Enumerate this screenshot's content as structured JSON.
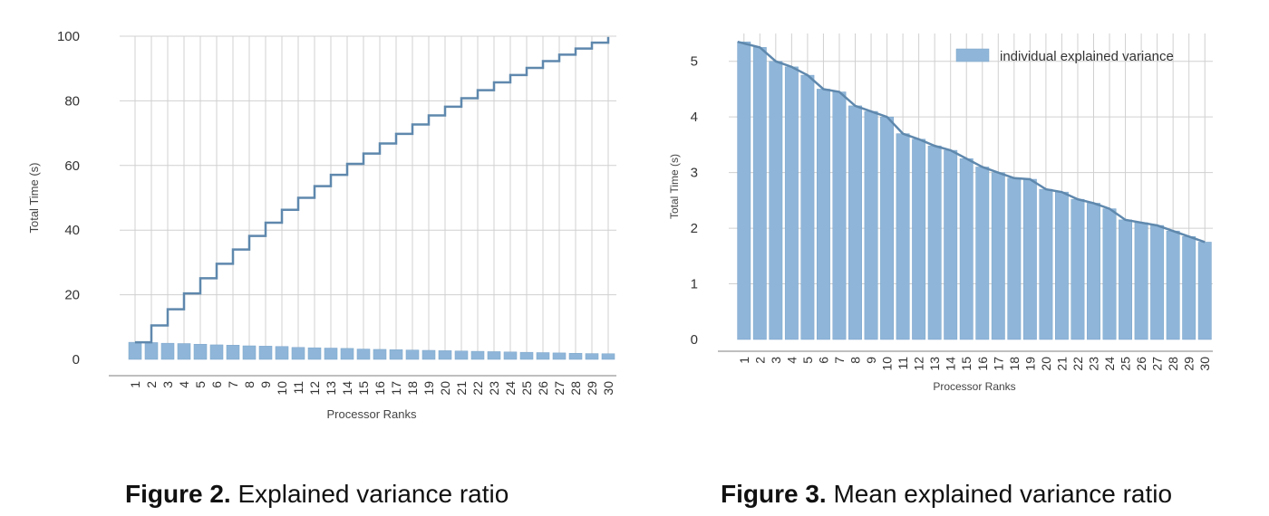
{
  "captions": [
    {
      "label": "Figure 2.",
      "text": "Explained variance ratio"
    },
    {
      "label": "Figure 3.",
      "text": "Mean explained variance ratio"
    }
  ],
  "colors": {
    "bar": "#8fb6d9",
    "bar_edge": "#7aa3c8",
    "line": "#5f88ad",
    "grid": "#d0d0d0",
    "axis": "#999999"
  },
  "chart_data": [
    {
      "type": "bar",
      "overlay": "step",
      "title": "",
      "xlabel": "Processor Ranks",
      "ylabel": "Total Time (s)",
      "ylim": [
        0,
        100
      ],
      "yticks": [
        0,
        20,
        40,
        60,
        80,
        100
      ],
      "grid": true,
      "categories": [
        "1",
        "2",
        "3",
        "4",
        "5",
        "6",
        "7",
        "8",
        "9",
        "10",
        "11",
        "12",
        "13",
        "14",
        "15",
        "16",
        "17",
        "18",
        "19",
        "20",
        "21",
        "22",
        "23",
        "24",
        "25",
        "26",
        "27",
        "28",
        "29",
        "30"
      ],
      "series": [
        {
          "kind": "bar",
          "values": [
            5.3,
            5.2,
            5.0,
            4.9,
            4.7,
            4.5,
            4.4,
            4.2,
            4.1,
            4.0,
            3.7,
            3.6,
            3.5,
            3.4,
            3.2,
            3.1,
            3.0,
            2.9,
            2.8,
            2.7,
            2.6,
            2.5,
            2.4,
            2.3,
            2.2,
            2.1,
            2.0,
            1.9,
            1.8,
            1.75
          ]
        },
        {
          "kind": "step",
          "values": [
            5.3,
            10.5,
            15.5,
            20.4,
            25.1,
            29.6,
            34.0,
            38.2,
            42.3,
            46.3,
            50.0,
            53.6,
            57.1,
            60.5,
            63.7,
            66.8,
            69.8,
            72.7,
            75.5,
            78.2,
            80.8,
            83.3,
            85.7,
            88.0,
            90.2,
            92.3,
            94.3,
            96.2,
            98.0,
            99.75
          ]
        }
      ]
    },
    {
      "type": "bar",
      "overlay": "line",
      "title": "",
      "xlabel": "Processor Ranks",
      "ylabel": "Total Time (s)",
      "ylim": [
        0,
        5.5
      ],
      "yticks": [
        0,
        1,
        2,
        3,
        4,
        5
      ],
      "grid": true,
      "legend": {
        "position": "top-right",
        "entries": [
          "individual explained variance"
        ]
      },
      "categories": [
        "1",
        "2",
        "3",
        "4",
        "5",
        "6",
        "7",
        "8",
        "9",
        "10",
        "11",
        "12",
        "13",
        "14",
        "15",
        "16",
        "17",
        "18",
        "19",
        "20",
        "21",
        "22",
        "23",
        "24",
        "25",
        "26",
        "27",
        "28",
        "29",
        "30"
      ],
      "series": [
        {
          "kind": "bar",
          "name": "individual explained variance",
          "values": [
            5.35,
            5.25,
            5.0,
            4.9,
            4.75,
            4.5,
            4.45,
            4.2,
            4.1,
            4.0,
            3.7,
            3.6,
            3.48,
            3.4,
            3.25,
            3.1,
            3.0,
            2.9,
            2.88,
            2.7,
            2.65,
            2.52,
            2.45,
            2.35,
            2.15,
            2.1,
            2.05,
            1.95,
            1.85,
            1.75
          ]
        },
        {
          "kind": "line",
          "values": [
            5.35,
            5.25,
            5.0,
            4.9,
            4.75,
            4.5,
            4.45,
            4.2,
            4.1,
            4.0,
            3.7,
            3.6,
            3.48,
            3.4,
            3.25,
            3.1,
            3.0,
            2.9,
            2.88,
            2.7,
            2.65,
            2.52,
            2.45,
            2.35,
            2.15,
            2.1,
            2.05,
            1.95,
            1.85,
            1.75
          ]
        }
      ]
    }
  ]
}
